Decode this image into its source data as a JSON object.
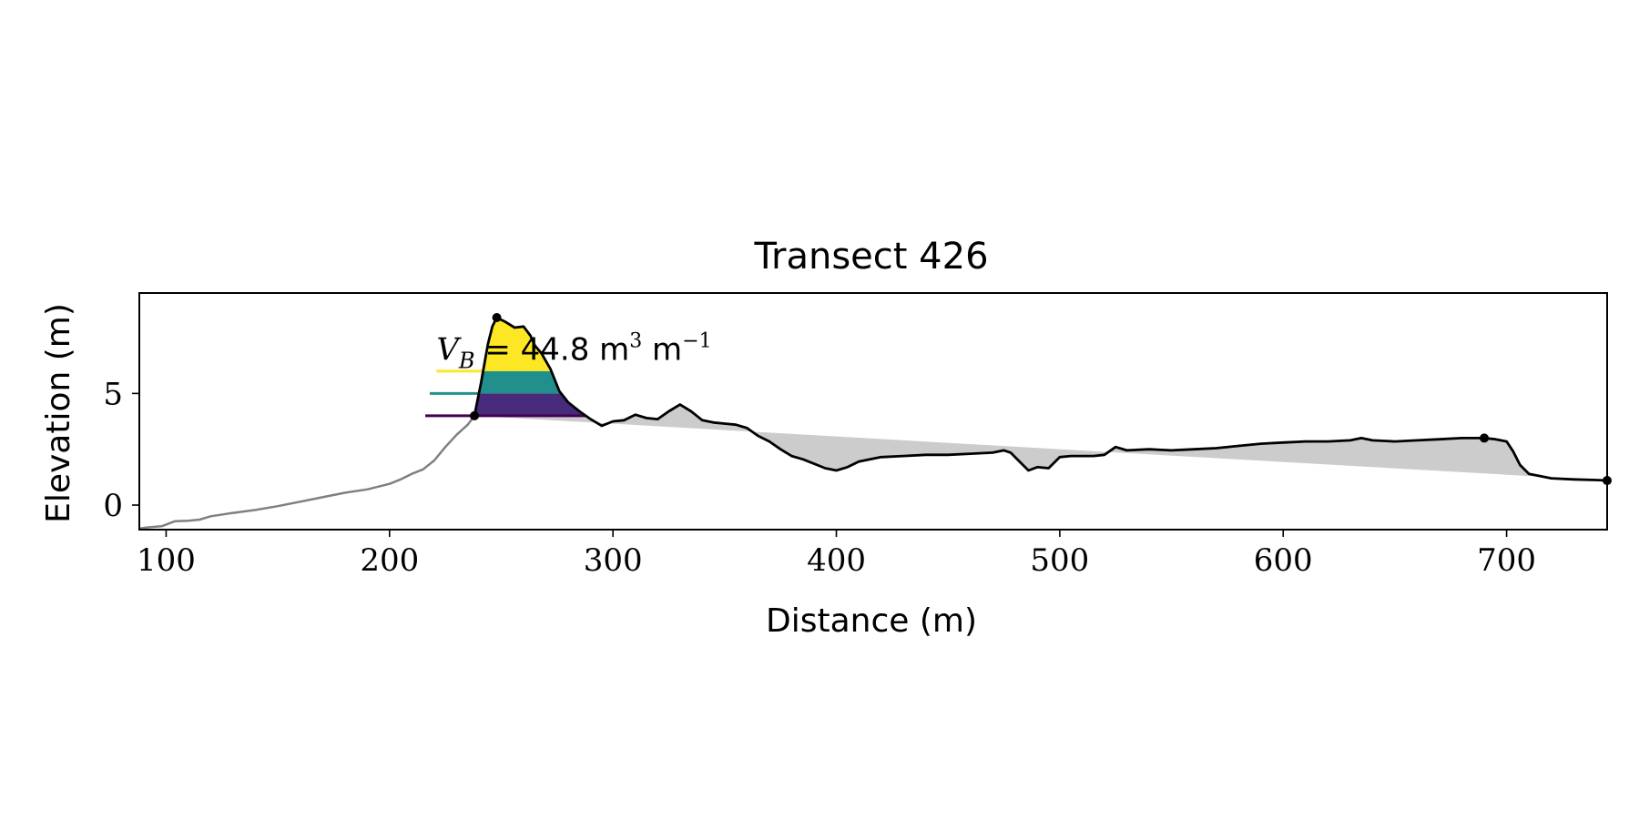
{
  "chart_data": {
    "type": "line",
    "title": "Transect 426",
    "xlabel": "Distance (m)",
    "ylabel": "Elevation (m)",
    "xlim": [
      88,
      745
    ],
    "ylim": [
      -1.1,
      9.5
    ],
    "x_ticks": [
      100,
      200,
      300,
      400,
      500,
      600,
      700
    ],
    "y_ticks": [
      0,
      5
    ],
    "grid": false,
    "annotation": {
      "symbol": "V",
      "subscript": "B",
      "text": "44.8 m",
      "unit_exp": "3",
      "unit_tail": " m",
      "unit_tail_exp": "−1",
      "position": [
        221,
        6.5
      ]
    },
    "series": [
      {
        "role": "foreshore",
        "color": "#808080",
        "x": [
          88,
          92,
          98,
          104,
          110,
          115,
          120,
          130,
          140,
          150,
          160,
          165,
          170,
          180,
          190,
          200,
          205,
          210,
          215,
          220,
          225,
          230,
          235,
          238
        ],
        "y": [
          -1.05,
          -1.0,
          -0.95,
          -0.72,
          -0.7,
          -0.65,
          -0.5,
          -0.35,
          -0.22,
          -0.05,
          0.15,
          0.25,
          0.35,
          0.55,
          0.7,
          0.95,
          1.15,
          1.4,
          1.6,
          2.0,
          2.6,
          3.15,
          3.6,
          4.0
        ]
      },
      {
        "role": "profile",
        "color": "#000000",
        "x": [
          238,
          241,
          244,
          246,
          248,
          252,
          256,
          260,
          263,
          265,
          268,
          272,
          276,
          280,
          285,
          290,
          295,
          300,
          305,
          310,
          315,
          320,
          325,
          330,
          335,
          340,
          345,
          350,
          355,
          360,
          365,
          370,
          375,
          380,
          385,
          390,
          395,
          400,
          405,
          410,
          420,
          430,
          440,
          450,
          460,
          470,
          475,
          478,
          482,
          486,
          490,
          495,
          500,
          505,
          510,
          515,
          520,
          525,
          530,
          540,
          550,
          560,
          570,
          580,
          590,
          600,
          610,
          620,
          630,
          635,
          640,
          650,
          660,
          670,
          680,
          690,
          695,
          700,
          703,
          706,
          710,
          720,
          730,
          740,
          745
        ],
        "y": [
          4.0,
          5.5,
          7.2,
          8.0,
          8.4,
          8.2,
          7.95,
          8.0,
          7.6,
          7.15,
          6.8,
          6.1,
          5.1,
          4.6,
          4.2,
          3.85,
          3.55,
          3.75,
          3.8,
          4.05,
          3.9,
          3.85,
          4.2,
          4.5,
          4.2,
          3.8,
          3.7,
          3.65,
          3.6,
          3.45,
          3.1,
          2.85,
          2.5,
          2.2,
          2.05,
          1.85,
          1.65,
          1.55,
          1.7,
          1.95,
          2.15,
          2.2,
          2.25,
          2.25,
          2.3,
          2.35,
          2.45,
          2.35,
          1.95,
          1.55,
          1.7,
          1.65,
          2.15,
          2.2,
          2.2,
          2.2,
          2.25,
          2.6,
          2.45,
          2.5,
          2.45,
          2.5,
          2.55,
          2.65,
          2.75,
          2.8,
          2.85,
          2.85,
          2.9,
          3.0,
          2.9,
          2.85,
          2.9,
          2.95,
          3.0,
          3.0,
          2.95,
          2.85,
          2.4,
          1.8,
          1.4,
          1.2,
          1.15,
          1.12,
          1.1
        ]
      }
    ],
    "baseline": {
      "color": "#cccccc",
      "from": [
        238,
        4.0
      ],
      "to": [
        745,
        1.1
      ]
    },
    "bands": [
      {
        "level_low": 4.0,
        "level_high": 5.0,
        "color": "#472a7a"
      },
      {
        "level_low": 5.0,
        "level_high": 6.0,
        "color": "#21908d"
      },
      {
        "level_low": 6.0,
        "level_high": 8.4,
        "color": "#fde725"
      }
    ],
    "level_lines": [
      {
        "y": 6.0,
        "x_start": 221,
        "color": "#fde725"
      },
      {
        "y": 5.0,
        "x_start": 218,
        "color": "#21908d"
      },
      {
        "y": 4.0,
        "x_start": 216,
        "color": "#440154"
      }
    ],
    "markers": [
      {
        "x": 238,
        "y": 4.0
      },
      {
        "x": 248,
        "y": 8.4
      },
      {
        "x": 690,
        "y": 3.0
      },
      {
        "x": 745,
        "y": 1.1
      }
    ]
  }
}
